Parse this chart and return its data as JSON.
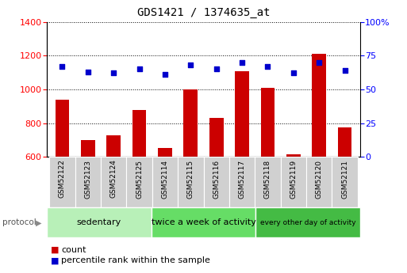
{
  "title": "GDS1421 / 1374635_at",
  "samples": [
    "GSM52122",
    "GSM52123",
    "GSM52124",
    "GSM52125",
    "GSM52114",
    "GSM52115",
    "GSM52116",
    "GSM52117",
    "GSM52118",
    "GSM52119",
    "GSM52120",
    "GSM52121"
  ],
  "counts": [
    940,
    700,
    730,
    880,
    655,
    1000,
    830,
    1110,
    1010,
    615,
    1210,
    775
  ],
  "percentiles": [
    67,
    63,
    62,
    65,
    61,
    68,
    65,
    70,
    67,
    62,
    70,
    64
  ],
  "groups": [
    {
      "label": "sedentary",
      "start": 0,
      "end": 4,
      "color": "#b8f0b8"
    },
    {
      "label": "twice a week of activity",
      "start": 4,
      "end": 8,
      "color": "#66dd66"
    },
    {
      "label": "every other day of activity",
      "start": 8,
      "end": 12,
      "color": "#44bb44"
    }
  ],
  "bar_color": "#cc0000",
  "dot_color": "#0000cc",
  "ylim_left": [
    600,
    1400
  ],
  "ylim_right": [
    0,
    100
  ],
  "yticks_left": [
    600,
    800,
    1000,
    1200,
    1400
  ],
  "yticks_right": [
    0,
    25,
    50,
    75,
    100
  ],
  "grid_color": "#000000",
  "bg_color": "#ffffff",
  "protocol_label": "protocol",
  "legend_count": "count",
  "legend_pct": "percentile rank within the sample",
  "sample_bg": "#d0d0d0",
  "title_fontsize": 10,
  "axis_fontsize": 8,
  "label_fontsize": 6.5,
  "proto_fontsize_main": 8,
  "proto_fontsize_small": 6.5
}
